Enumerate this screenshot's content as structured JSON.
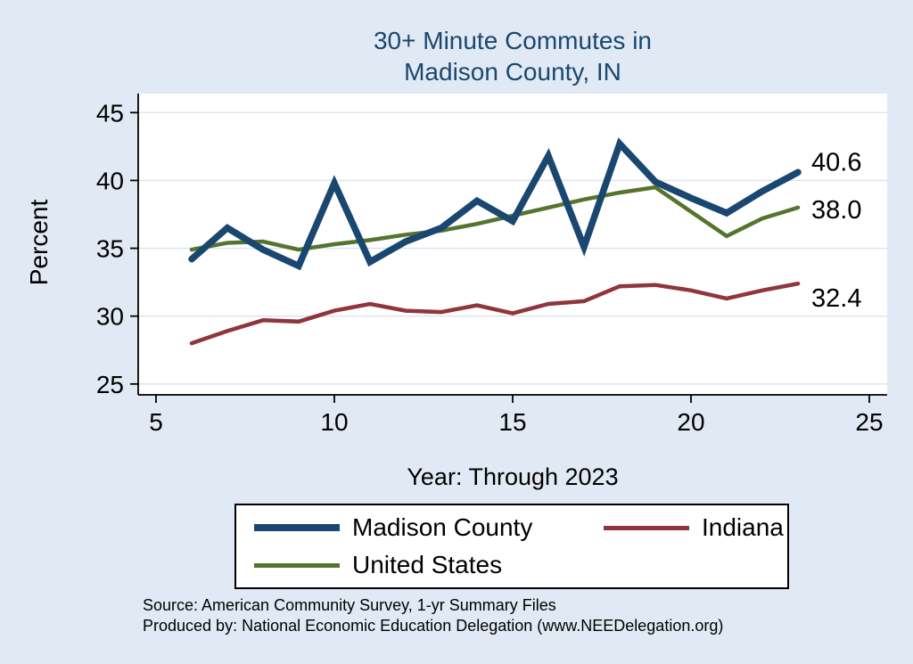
{
  "title": {
    "line1": "30+ Minute Commutes in",
    "line2": "Madison County, IN"
  },
  "colors": {
    "background": "#e1eaf4",
    "plot_background": "#ffffff",
    "grid": "#d9e2ef",
    "axis": "#000000",
    "title": "#1a476f"
  },
  "chart_data": {
    "type": "line",
    "title": "30+ Minute Commutes in Madison County, IN",
    "xlabel": "Year: Through 2023",
    "ylabel": "Percent",
    "x": [
      6,
      7,
      8,
      9,
      10,
      11,
      12,
      13,
      14,
      15,
      16,
      17,
      18,
      19,
      20,
      21,
      22,
      23
    ],
    "xticks": [
      5,
      10,
      15,
      20,
      25
    ],
    "yticks": [
      25,
      30,
      35,
      40,
      45
    ],
    "xlim": [
      4.5,
      25.5
    ],
    "ylim": [
      24.2,
      46.4
    ],
    "grid": "horizontal",
    "legend_position": "bottom",
    "series": [
      {
        "name": "Indiana",
        "color": "#90353b",
        "width": 4.5,
        "values": [
          28.0,
          28.9,
          29.7,
          29.6,
          30.4,
          30.9,
          30.4,
          30.3,
          30.8,
          30.2,
          30.9,
          31.1,
          32.2,
          32.3,
          31.9,
          31.3,
          31.9,
          32.4
        ],
        "end_label": "32.4",
        "end_label_dy": 26
      },
      {
        "name": "United States",
        "color": "#55752f",
        "width": 4.5,
        "values": [
          34.9,
          35.4,
          35.5,
          34.9,
          35.3,
          35.6,
          36.0,
          36.3,
          36.8,
          37.4,
          38.0,
          38.6,
          39.1,
          39.5,
          37.7,
          35.9,
          37.2,
          38.0
        ],
        "end_label": "38.0",
        "end_label_dy": 12
      },
      {
        "name": "Madison County",
        "color": "#1a476f",
        "width": 7.5,
        "values": [
          34.2,
          36.5,
          34.9,
          33.7,
          39.8,
          34.0,
          35.5,
          36.5,
          38.5,
          37.0,
          41.8,
          35.1,
          42.7,
          39.9,
          38.7,
          37.6,
          39.2,
          40.6
        ],
        "end_label": "40.6",
        "end_label_dy": -2
      }
    ]
  },
  "legend": {
    "row1_col1": "Madison County",
    "row1_col2": "Indiana",
    "row2_col1": "United States"
  },
  "footer": {
    "line1": "Source: American Community Survey, 1-yr Summary Files",
    "line2": "Produced by: National Economic Education Delegation (www.NEEDelegation.org)"
  }
}
